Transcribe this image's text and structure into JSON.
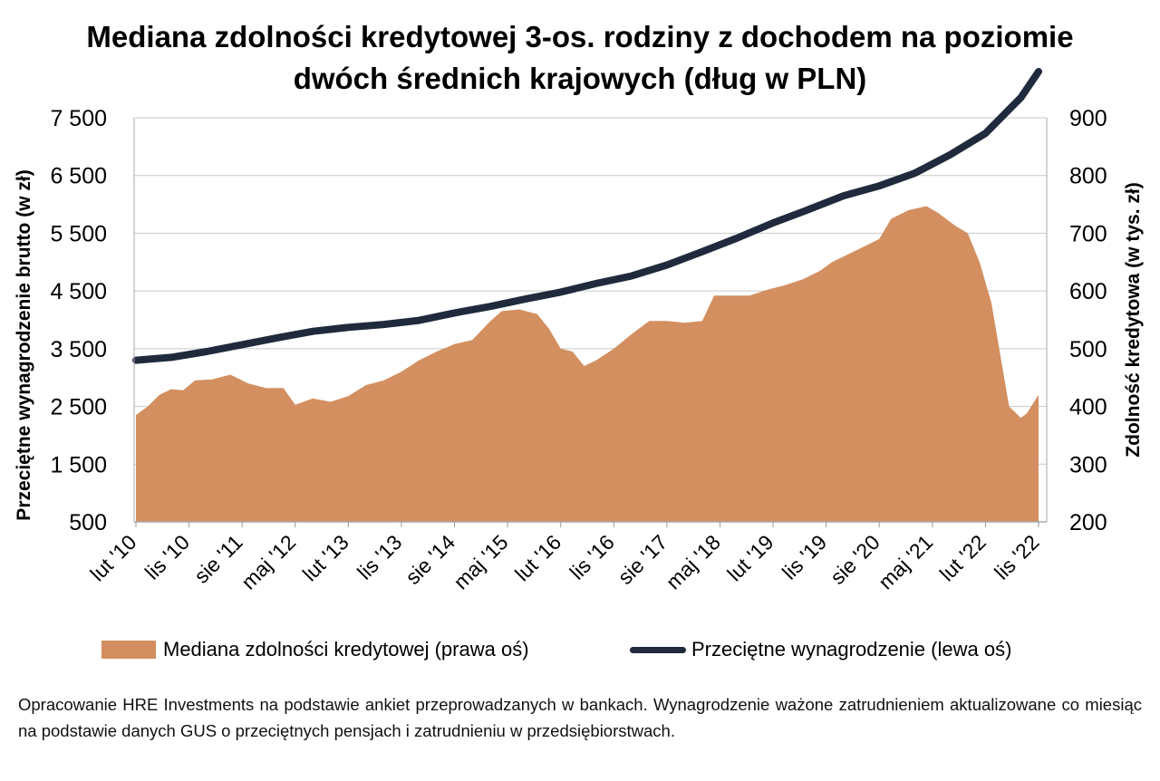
{
  "title_line1": "Mediana zdolności kredytowej 3-os. rodziny z dochodem na poziomie",
  "title_line2": "dwóch średnich krajowych (dług w PLN)",
  "legend": {
    "area_label": "Mediana zdolności kredytowej (prawa oś)",
    "line_label": "Przeciętne wynagrodzenie (lewa oś)"
  },
  "source_note": "Opracowanie HRE Investments na podstawie ankiet przeprowadzanych w bankach. Wynagrodzenie ważone zatrudnieniem aktualizowane co miesiąc na podstawie danych GUS o przeciętnych pensjach i zatrudnieniu w przedsiębiorstwach.",
  "chart_data": {
    "type": "area+line",
    "title": "Mediana zdolności kredytowej 3-os. rodziny z dochodem na poziomie dwóch średnich krajowych (dług w PLN)",
    "xlabel": "",
    "ylabel_left": "Przeciętne wynagrodzenie brutto (w zł)",
    "ylabel_right": "Zdolność kredytowa (w tys. zł)",
    "ylim_left": [
      500,
      7500
    ],
    "ylim_right": [
      200,
      900
    ],
    "yticks_left": [
      "500",
      "1 500",
      "2 500",
      "3 500",
      "4 500",
      "5 500",
      "6 500",
      "7 500"
    ],
    "yticks_right": [
      "200",
      "300",
      "400",
      "500",
      "600",
      "700",
      "800",
      "900"
    ],
    "x_start": "2010-02",
    "x_end": "2022-11",
    "x_tick_labels": [
      "lut '10",
      "lis '10",
      "sie '11",
      "maj '12",
      "lut '13",
      "lis '13",
      "sie '14",
      "maj '15",
      "lut '16",
      "lis '16",
      "sie '17",
      "maj '18",
      "lut '19",
      "lis '19",
      "sie '20",
      "maj '21",
      "lut '22",
      "lis '22"
    ],
    "grid": true,
    "legend_position": "bottom",
    "colors": {
      "area": "#d38f60",
      "line": "#1f2a3c",
      "grid": "#c8c8c8"
    },
    "series": [
      {
        "name": "Mediana zdolności kredytowej (prawa oś)",
        "axis": "right",
        "type": "area",
        "points": [
          [
            "2010-02",
            385
          ],
          [
            "2010-04",
            400
          ],
          [
            "2010-06",
            420
          ],
          [
            "2010-08",
            430
          ],
          [
            "2010-10",
            428
          ],
          [
            "2010-12",
            445
          ],
          [
            "2011-03",
            447
          ],
          [
            "2011-06",
            455
          ],
          [
            "2011-09",
            440
          ],
          [
            "2011-12",
            432
          ],
          [
            "2012-03",
            432
          ],
          [
            "2012-05",
            403
          ],
          [
            "2012-08",
            414
          ],
          [
            "2012-11",
            408
          ],
          [
            "2013-02",
            418
          ],
          [
            "2013-05",
            437
          ],
          [
            "2013-08",
            445
          ],
          [
            "2013-11",
            460
          ],
          [
            "2014-02",
            480
          ],
          [
            "2014-05",
            495
          ],
          [
            "2014-08",
            508
          ],
          [
            "2014-11",
            515
          ],
          [
            "2015-02",
            547
          ],
          [
            "2015-04",
            565
          ],
          [
            "2015-07",
            568
          ],
          [
            "2015-10",
            560
          ],
          [
            "2015-12",
            535
          ],
          [
            "2016-02",
            500
          ],
          [
            "2016-04",
            495
          ],
          [
            "2016-06",
            470
          ],
          [
            "2016-08",
            480
          ],
          [
            "2016-11",
            500
          ],
          [
            "2017-02",
            525
          ],
          [
            "2017-05",
            548
          ],
          [
            "2017-08",
            548
          ],
          [
            "2017-11",
            545
          ],
          [
            "2018-02",
            548
          ],
          [
            "2018-04",
            592
          ],
          [
            "2018-07",
            592
          ],
          [
            "2018-10",
            592
          ],
          [
            "2019-01",
            602
          ],
          [
            "2019-04",
            610
          ],
          [
            "2019-07",
            620
          ],
          [
            "2019-10",
            635
          ],
          [
            "2019-12",
            650
          ],
          [
            "2020-03",
            665
          ],
          [
            "2020-06",
            680
          ],
          [
            "2020-08",
            690
          ],
          [
            "2020-10",
            725
          ],
          [
            "2021-01",
            740
          ],
          [
            "2021-04",
            747
          ],
          [
            "2021-06",
            735
          ],
          [
            "2021-09",
            712
          ],
          [
            "2021-11",
            700
          ],
          [
            "2022-01",
            650
          ],
          [
            "2022-03",
            580
          ],
          [
            "2022-04",
            520
          ],
          [
            "2022-06",
            400
          ],
          [
            "2022-08",
            380
          ],
          [
            "2022-09",
            388
          ],
          [
            "2022-11",
            420
          ]
        ]
      },
      {
        "name": "Przeciętne wynagrodzenie (lewa oś)",
        "axis": "left",
        "type": "line",
        "points": [
          [
            "2010-02",
            3300
          ],
          [
            "2010-08",
            3350
          ],
          [
            "2011-02",
            3450
          ],
          [
            "2011-08",
            3570
          ],
          [
            "2012-02",
            3690
          ],
          [
            "2012-08",
            3800
          ],
          [
            "2013-02",
            3870
          ],
          [
            "2013-08",
            3920
          ],
          [
            "2014-02",
            3990
          ],
          [
            "2014-08",
            4120
          ],
          [
            "2015-02",
            4230
          ],
          [
            "2015-08",
            4360
          ],
          [
            "2016-02",
            4480
          ],
          [
            "2016-08",
            4630
          ],
          [
            "2017-02",
            4760
          ],
          [
            "2017-08",
            4950
          ],
          [
            "2018-02",
            5180
          ],
          [
            "2018-08",
            5420
          ],
          [
            "2019-02",
            5680
          ],
          [
            "2019-08",
            5910
          ],
          [
            "2020-02",
            6150
          ],
          [
            "2020-08",
            6320
          ],
          [
            "2021-02",
            6540
          ],
          [
            "2021-08",
            6860
          ],
          [
            "2022-02",
            7230
          ],
          [
            "2022-08",
            7850
          ],
          [
            "2022-11",
            8300
          ]
        ]
      }
    ]
  }
}
